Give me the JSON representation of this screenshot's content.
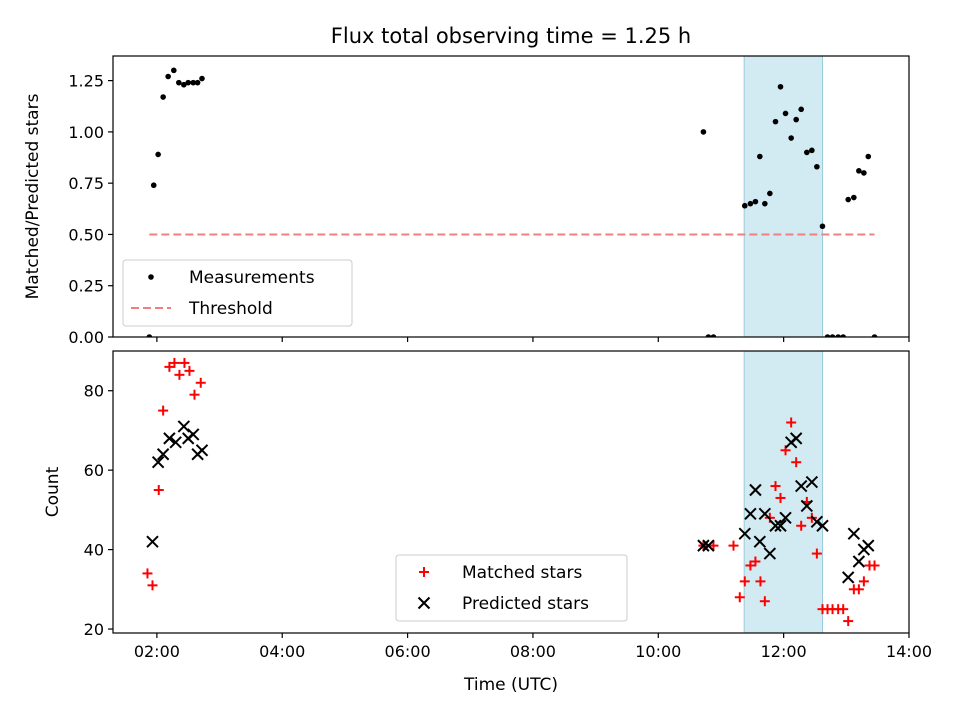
{
  "chart_data": {
    "title": "Flux total observing time = 1.25 h",
    "xlabel": "Time (UTC)",
    "x_ticks": [
      "02:00",
      "04:00",
      "06:00",
      "08:00",
      "10:00",
      "12:00",
      "14:00"
    ],
    "x_tick_values_h": [
      2,
      4,
      6,
      8,
      10,
      12,
      14
    ],
    "xlim_h": [
      1.3,
      14.0
    ],
    "highlight_window_h": [
      11.37,
      12.62
    ],
    "highlight_color": "#add8e6",
    "panels": [
      {
        "type": "scatter",
        "ylabel": "Matched/Predicted stars",
        "ylim": [
          0,
          1.37
        ],
        "y_ticks": [
          0.0,
          0.25,
          0.5,
          0.75,
          1.0,
          1.25
        ],
        "y_tick_labels": [
          "0.00",
          "0.25",
          "0.50",
          "0.75",
          "1.00",
          "1.25"
        ],
        "legend_position": "lower-left",
        "series": [
          {
            "name": "Measurements",
            "marker": "dot",
            "color": "#000000",
            "x": [
              1.88,
              1.95,
              2.02,
              2.1,
              2.18,
              2.27,
              2.35,
              2.43,
              2.5,
              2.58,
              2.65,
              2.72,
              10.72,
              10.8,
              10.88,
              11.38,
              11.47,
              11.55,
              11.62,
              11.7,
              11.78,
              11.87,
              11.95,
              12.03,
              12.12,
              12.2,
              12.28,
              12.37,
              12.45,
              12.53,
              12.62,
              12.7,
              12.78,
              12.87,
              12.95,
              13.03,
              13.12,
              13.2,
              13.28,
              13.35,
              13.45
            ],
            "y": [
              0.0,
              0.74,
              0.89,
              1.17,
              1.27,
              1.3,
              1.24,
              1.23,
              1.24,
              1.24,
              1.24,
              1.26,
              1.0,
              0.0,
              0.0,
              0.64,
              0.65,
              0.66,
              0.88,
              0.65,
              0.7,
              1.05,
              1.22,
              1.09,
              0.97,
              1.06,
              1.11,
              0.9,
              0.91,
              0.83,
              0.54,
              0.0,
              0.0,
              0.0,
              0.0,
              0.67,
              0.68,
              0.81,
              0.8,
              0.88,
              0.0
            ]
          },
          {
            "name": "Threshold",
            "marker": "dashed-line",
            "color": "#f08080",
            "x": [
              1.88,
              13.45
            ],
            "y": [
              0.5,
              0.5
            ]
          }
        ]
      },
      {
        "type": "scatter",
        "ylabel": "Count",
        "ylim": [
          19,
          90
        ],
        "y_ticks": [
          20,
          40,
          60,
          80
        ],
        "y_tick_labels": [
          "20",
          "40",
          "60",
          "80"
        ],
        "legend_position": "bottom-center",
        "series": [
          {
            "name": "Matched stars",
            "marker": "plus",
            "color": "#ff0000",
            "x": [
              1.85,
              1.93,
              2.03,
              2.1,
              2.2,
              2.28,
              2.36,
              2.44,
              2.52,
              2.6,
              2.7,
              10.72,
              10.88,
              11.2,
              11.3,
              11.38,
              11.47,
              11.55,
              11.63,
              11.7,
              11.78,
              11.87,
              11.95,
              12.03,
              12.12,
              12.2,
              12.28,
              12.37,
              12.45,
              12.53,
              12.62,
              12.7,
              12.78,
              12.87,
              12.95,
              13.03,
              13.12,
              13.2,
              13.28,
              13.37,
              13.45
            ],
            "y": [
              34,
              31,
              55,
              75,
              86,
              87,
              84,
              87,
              85,
              79,
              82,
              41,
              41,
              41,
              28,
              32,
              36,
              37,
              32,
              27,
              48,
              56,
              53,
              65,
              72,
              62,
              46,
              52,
              48,
              39,
              25,
              25,
              25,
              25,
              25,
              22,
              30,
              30,
              32,
              36,
              36
            ]
          },
          {
            "name": "Predicted stars",
            "marker": "x",
            "color": "#000000",
            "x": [
              1.93,
              2.02,
              2.1,
              2.2,
              2.3,
              2.43,
              2.5,
              2.58,
              2.65,
              2.72,
              10.72,
              10.8,
              11.38,
              11.47,
              11.55,
              11.62,
              11.7,
              11.78,
              11.87,
              11.95,
              12.03,
              12.12,
              12.2,
              12.28,
              12.37,
              12.45,
              12.53,
              12.62,
              13.03,
              13.12,
              13.2,
              13.28,
              13.35
            ],
            "y": [
              42,
              62,
              64,
              68,
              67,
              71,
              68,
              69,
              64,
              65,
              41,
              41,
              44,
              49,
              55,
              42,
              49,
              39,
              46,
              46,
              48,
              67,
              68,
              56,
              51,
              57,
              47,
              46,
              33,
              44,
              37,
              40,
              41
            ]
          }
        ]
      }
    ]
  }
}
